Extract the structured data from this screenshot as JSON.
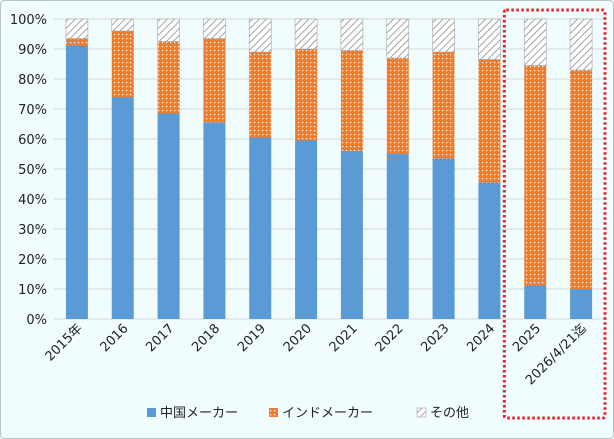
{
  "chart_data": {
    "type": "bar",
    "stacked": true,
    "percent": true,
    "categories": [
      "2015年",
      "2016",
      "2017",
      "2018",
      "2019",
      "2020",
      "2021",
      "2022",
      "2023",
      "2024",
      "2025",
      "2026/4/21迄"
    ],
    "series": [
      {
        "name": "中国メーカー",
        "color": "#5b9bd5",
        "pattern": "solid",
        "values": [
          91,
          74,
          68.5,
          65.5,
          60.5,
          59.5,
          56,
          55,
          53.5,
          45.5,
          11,
          10
        ]
      },
      {
        "name": "インドメーカー",
        "color": "#ed7d31",
        "pattern": "dotted",
        "values": [
          2.5,
          22,
          24,
          28,
          28.5,
          30.5,
          33.5,
          32,
          35.5,
          41,
          73.5,
          73
        ]
      },
      {
        "name": "その他",
        "color": "#a5a5a5",
        "pattern": "hatched",
        "values": [
          6.5,
          4,
          7.5,
          6.5,
          11,
          10,
          10.5,
          13,
          11,
          13.5,
          15.5,
          17
        ]
      }
    ],
    "ylim": [
      0,
      100
    ],
    "yticks": [
      "0%",
      "10%",
      "20%",
      "30%",
      "40%",
      "50%",
      "60%",
      "70%",
      "80%",
      "90%",
      "100%"
    ],
    "grid": true,
    "legend_position": "bottom",
    "highlight": {
      "categories": [
        "2025",
        "2026/4/21迄"
      ],
      "style": "red-dotted-box"
    }
  }
}
